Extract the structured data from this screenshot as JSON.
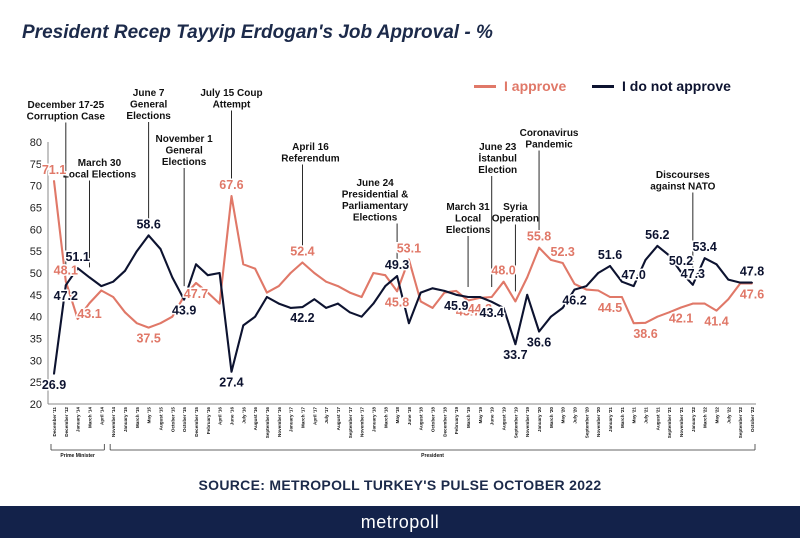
{
  "title": "President Recep Tayyip Erdogan's Job Approval - %",
  "source": "SOURCE: METROPOLL TURKEY'S PULSE OCTOBER 2022",
  "footer_brand": "metropoll",
  "colors": {
    "approve": "#e07868",
    "disapprove": "#0d1330",
    "title": "#1c2a4a",
    "footer": "#13224a"
  },
  "chart_data": {
    "type": "line",
    "title": "President Recep Tayyip Erdogan's Job Approval - %",
    "ylim": [
      20,
      80
    ],
    "yticks": [
      20,
      25,
      30,
      35,
      40,
      45,
      50,
      55,
      60,
      65,
      70,
      75,
      80
    ],
    "grid": false,
    "legend_position": "top-right",
    "x_tick_labels": [
      "December '11",
      "December '12",
      "January '14",
      "March '14",
      "April '14",
      "November '14",
      "January '15",
      "March '15",
      "May '15",
      "August '15",
      "October '15",
      "October '15",
      "December '15",
      "February '16",
      "April '16",
      "June '16",
      "July '16",
      "August '16",
      "September '16",
      "November '16",
      "January '17",
      "March '17",
      "April '17",
      "July '17",
      "August '17",
      "September '17",
      "November '17",
      "January '18",
      "March '18",
      "May '18",
      "June '18",
      "August '18",
      "October '18",
      "December '18",
      "February '19",
      "March '19",
      "May '19",
      "June '19",
      "August '19",
      "September '19",
      "November '19",
      "January '20",
      "March '20",
      "May '20",
      "July '20",
      "September '20",
      "November '20",
      "January '21",
      "March '21",
      "May '21",
      "July '21",
      "August '21",
      "September '21",
      "November '21",
      "January '22",
      "March '22",
      "May '22",
      "July '22",
      "September '22",
      "October '22"
    ],
    "periods": [
      {
        "label": "Prime Minister",
        "start": 0,
        "end": 4
      },
      {
        "label": "President",
        "start": 5,
        "end": 59
      }
    ],
    "series": [
      {
        "name": "I approve",
        "values": [
          71.1,
          48.1,
          39.5,
          43.1,
          46,
          44.5,
          41,
          38.5,
          37.5,
          38.5,
          40,
          44.7,
          47.7,
          45.5,
          43,
          67.6,
          52,
          51,
          45.5,
          47,
          50,
          52.4,
          50,
          48,
          47,
          45.5,
          44.5,
          50,
          49.5,
          45.8,
          53.1,
          43.5,
          42,
          45.5,
          45.9,
          43.7,
          44.3,
          44.5,
          48.0,
          43.5,
          49,
          55.8,
          53,
          52.3,
          47.5,
          46.2,
          46,
          44.5,
          44.5,
          38.5,
          38.6,
          40,
          41,
          42.1,
          43,
          43,
          41.4,
          44,
          47.6,
          47.6
        ]
      },
      {
        "name": "I do not approve",
        "values": [
          26.9,
          47.2,
          51.1,
          49,
          47,
          48,
          50.5,
          55,
          58.6,
          55.5,
          49,
          43.9,
          52,
          49.5,
          50,
          27.4,
          38,
          40,
          44.5,
          43,
          42,
          42.2,
          44,
          42,
          43,
          41,
          40,
          43,
          47,
          49.3,
          38.5,
          45.5,
          46.5,
          45.9,
          45,
          44.5,
          44.5,
          43.4,
          42,
          33.7,
          45,
          36.6,
          40,
          42,
          46.2,
          47,
          50,
          51.6,
          48,
          47.0,
          53,
          56.2,
          54,
          50.2,
          47.3,
          53.4,
          52,
          48.5,
          47.8,
          47.8
        ]
      }
    ],
    "data_labels": [
      {
        "series": 0,
        "index": 0,
        "text": "71.1"
      },
      {
        "series": 0,
        "index": 1,
        "text": "48.1"
      },
      {
        "series": 0,
        "index": 3,
        "text": "43.1"
      },
      {
        "series": 0,
        "index": 8,
        "text": "37.5"
      },
      {
        "series": 0,
        "index": 12,
        "text": "47.7"
      },
      {
        "series": 0,
        "index": 15,
        "text": "67.6"
      },
      {
        "series": 0,
        "index": 21,
        "text": "52.4"
      },
      {
        "series": 0,
        "index": 29,
        "text": "45.8"
      },
      {
        "series": 0,
        "index": 30,
        "text": "53.1"
      },
      {
        "series": 0,
        "index": 35,
        "text": "43.7"
      },
      {
        "series": 0,
        "index": 36,
        "text": "44.3"
      },
      {
        "series": 0,
        "index": 38,
        "text": "48.0"
      },
      {
        "series": 0,
        "index": 41,
        "text": "55.8"
      },
      {
        "series": 0,
        "index": 43,
        "text": "52.3"
      },
      {
        "series": 0,
        "index": 47,
        "text": "44.5"
      },
      {
        "series": 0,
        "index": 50,
        "text": "38.6"
      },
      {
        "series": 0,
        "index": 53,
        "text": "42.1"
      },
      {
        "series": 0,
        "index": 56,
        "text": "41.4"
      },
      {
        "series": 0,
        "index": 59,
        "text": "47.6"
      },
      {
        "series": 1,
        "index": 0,
        "text": "26.9"
      },
      {
        "series": 1,
        "index": 1,
        "text": "47.2"
      },
      {
        "series": 1,
        "index": 2,
        "text": "51.1"
      },
      {
        "series": 1,
        "index": 8,
        "text": "58.6"
      },
      {
        "series": 1,
        "index": 11,
        "text": "43.9"
      },
      {
        "series": 1,
        "index": 15,
        "text": "27.4"
      },
      {
        "series": 1,
        "index": 21,
        "text": "42.2"
      },
      {
        "series": 1,
        "index": 29,
        "text": "49.3"
      },
      {
        "series": 1,
        "index": 34,
        "text": "45.9"
      },
      {
        "series": 1,
        "index": 37,
        "text": "43.4"
      },
      {
        "series": 1,
        "index": 39,
        "text": "33.7"
      },
      {
        "series": 1,
        "index": 41,
        "text": "36.6"
      },
      {
        "series": 1,
        "index": 44,
        "text": "46.2"
      },
      {
        "series": 1,
        "index": 47,
        "text": "51.6"
      },
      {
        "series": 1,
        "index": 49,
        "text": "47.0"
      },
      {
        "series": 1,
        "index": 51,
        "text": "56.2"
      },
      {
        "series": 1,
        "index": 53,
        "text": "50.2"
      },
      {
        "series": 1,
        "index": 54,
        "text": "47.3"
      },
      {
        "series": 1,
        "index": 55,
        "text": "53.4"
      },
      {
        "series": 1,
        "index": 59,
        "text": "47.8"
      }
    ],
    "annotations": [
      {
        "index": 1,
        "lines": [
          "December 17-25",
          "Corruption Case"
        ]
      },
      {
        "index": 3,
        "lines": [
          "March 30",
          "Local Elections"
        ]
      },
      {
        "index": 8,
        "lines": [
          "June 7",
          "General",
          "Elections"
        ]
      },
      {
        "index": 11,
        "lines": [
          "November 1",
          "General",
          "Elections"
        ]
      },
      {
        "index": 15,
        "lines": [
          "July 15 Coup",
          "Attempt"
        ]
      },
      {
        "index": 21,
        "lines": [
          "April 16",
          "Referendum"
        ]
      },
      {
        "index": 29,
        "lines": [
          "June 24",
          "Presidential &",
          "Parliamentary",
          "Elections"
        ]
      },
      {
        "index": 35,
        "lines": [
          "March 31",
          "Local",
          "Elections"
        ]
      },
      {
        "index": 37,
        "lines": [
          "June 23",
          "İstanbul",
          "Election"
        ]
      },
      {
        "index": 39,
        "lines": [
          "Syria",
          "Operation"
        ]
      },
      {
        "index": 41,
        "lines": [
          "Coronavirus",
          "Pandemic"
        ]
      },
      {
        "index": 54,
        "lines": [
          "Discourses",
          "against NATO"
        ]
      }
    ]
  }
}
